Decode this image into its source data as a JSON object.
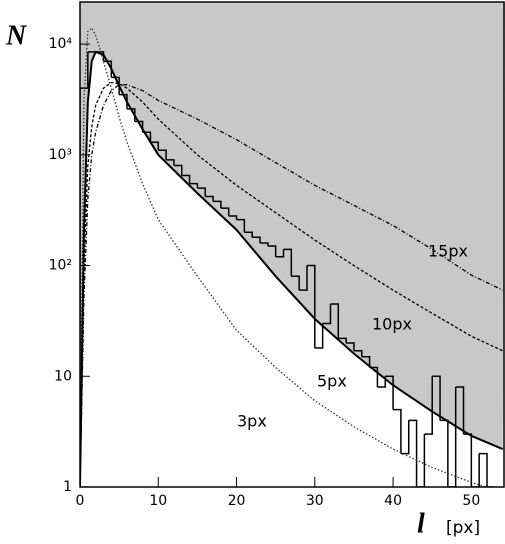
{
  "chart_data": {
    "type": "histogram",
    "y_label": "N",
    "x_label": "l",
    "x_unit": "[px]",
    "xlim": [
      0,
      54.3
    ],
    "ylim": [
      1,
      24000
    ],
    "ylog": true,
    "xticks": [
      0,
      10,
      20,
      30,
      40,
      50
    ],
    "yticks": [
      1,
      10,
      {
        "value": 100,
        "label": "10²"
      },
      {
        "value": 1000,
        "label": "10³"
      },
      {
        "value": 10000,
        "label": "10⁴"
      }
    ],
    "shade_color": "#c8c8c8",
    "histogram": {
      "color": "#000000",
      "bins": [
        0,
        1,
        2,
        3,
        4,
        5,
        6,
        7,
        8,
        9,
        10,
        11,
        12,
        13,
        14,
        15,
        16,
        17,
        18,
        19,
        20,
        21,
        22,
        23,
        24,
        25,
        26,
        27,
        28,
        29,
        30,
        31,
        32,
        33,
        34,
        35,
        36,
        37,
        38,
        39,
        40,
        41,
        42,
        43,
        44,
        45,
        46,
        47,
        48,
        49,
        50,
        51,
        52,
        53
      ],
      "values": [
        4000,
        8500,
        8500,
        7000,
        5000,
        3500,
        2600,
        2000,
        1600,
        1300,
        1100,
        900,
        800,
        650,
        550,
        500,
        420,
        380,
        330,
        280,
        260,
        200,
        180,
        160,
        150,
        120,
        140,
        80,
        60,
        100,
        18,
        30,
        45,
        22,
        20,
        17,
        15,
        12,
        8,
        10,
        5,
        2,
        4,
        1,
        3,
        10,
        4,
        1,
        8,
        3,
        1,
        2,
        1
      ]
    },
    "series": [
      {
        "name": "3px",
        "color": "#333333",
        "dash": "1.5,2",
        "x": [
          0,
          0.5,
          1,
          1.5,
          2,
          3,
          4,
          5,
          6,
          8,
          10,
          15,
          20,
          25,
          30,
          35,
          40,
          45,
          50,
          54
        ],
        "values": [
          1,
          3000,
          13000,
          14000,
          12000,
          7000,
          4000,
          2200,
          1300,
          550,
          260,
          80,
          26,
          12,
          6,
          3.5,
          2.2,
          1.5,
          1.1,
          0.9
        ]
      },
      {
        "name": "5px",
        "color": "#000000",
        "dash": "none",
        "shaded": true,
        "x": [
          0,
          0.5,
          1,
          1.5,
          2,
          3,
          4,
          5,
          6,
          8,
          10,
          15,
          20,
          25,
          30,
          35,
          40,
          45,
          50,
          54
        ],
        "values": [
          1,
          200,
          3000,
          7000,
          8500,
          8000,
          6000,
          4200,
          3000,
          1700,
          1000,
          450,
          210,
          80,
          33,
          16,
          8.3,
          4.8,
          2.9,
          2.2
        ]
      },
      {
        "name": "10px",
        "color": "#000000",
        "dash": "3,2",
        "x": [
          0,
          0.5,
          1,
          1.5,
          2,
          3,
          4,
          5,
          6,
          8,
          10,
          15,
          20,
          25,
          30,
          35,
          40,
          45,
          50,
          54
        ],
        "values": [
          1,
          100,
          800,
          1800,
          2800,
          4000,
          4500,
          4400,
          4000,
          3000,
          2100,
          1000,
          530,
          300,
          170,
          100,
          60,
          37,
          23,
          17
        ]
      },
      {
        "name": "15px",
        "color": "#000000",
        "dash": "4,2,1,2",
        "x": [
          0,
          0.5,
          1,
          1.5,
          2,
          3,
          4,
          5,
          6,
          8,
          10,
          15,
          20,
          25,
          30,
          35,
          40,
          45,
          50,
          54
        ],
        "values": [
          1,
          50,
          400,
          1000,
          1600,
          2800,
          3800,
          4300,
          4300,
          3800,
          3100,
          2100,
          1370,
          850,
          530,
          350,
          230,
          140,
          82,
          60
        ]
      }
    ]
  }
}
